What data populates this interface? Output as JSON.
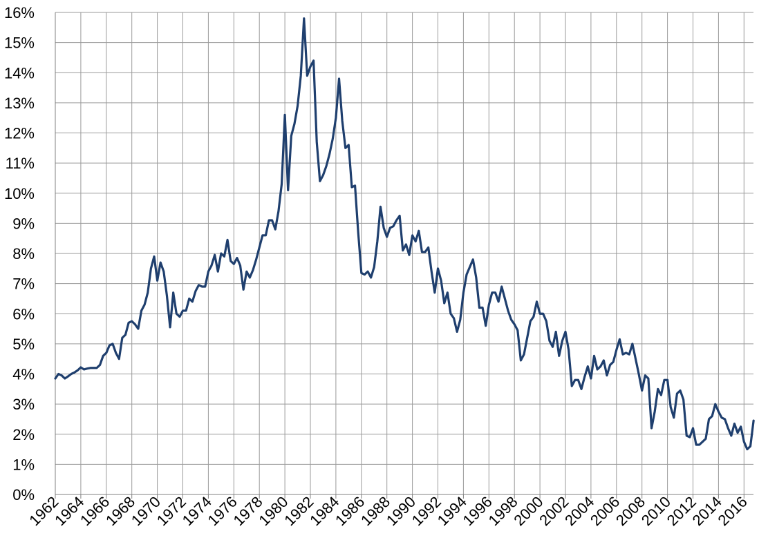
{
  "chart_data": {
    "type": "line",
    "title": "",
    "xlabel": "",
    "ylabel": "",
    "xlim": [
      1962,
      2016.75
    ],
    "ylim": [
      0,
      16
    ],
    "grid": true,
    "legend": "none",
    "y_ticks": [
      "0%",
      "1%",
      "2%",
      "3%",
      "4%",
      "5%",
      "6%",
      "7%",
      "8%",
      "9%",
      "10%",
      "11%",
      "12%",
      "13%",
      "14%",
      "15%",
      "16%"
    ],
    "x_ticks": [
      "1962",
      "1964",
      "1966",
      "1968",
      "1970",
      "1972",
      "1974",
      "1976",
      "1978",
      "1980",
      "1982",
      "1984",
      "1986",
      "1988",
      "1990",
      "1992",
      "1994",
      "1996",
      "1998",
      "2000",
      "2002",
      "2004",
      "2006",
      "2008",
      "2010",
      "2012",
      "2014",
      "2016"
    ],
    "series_color": "#1f3f6e",
    "series": [
      {
        "name": "",
        "points": [
          [
            1962.0,
            3.85
          ],
          [
            1962.25,
            4.0
          ],
          [
            1962.5,
            3.95
          ],
          [
            1962.75,
            3.85
          ],
          [
            1963.0,
            3.92
          ],
          [
            1963.25,
            4.0
          ],
          [
            1963.5,
            4.05
          ],
          [
            1963.75,
            4.12
          ],
          [
            1964.0,
            4.22
          ],
          [
            1964.25,
            4.15
          ],
          [
            1964.5,
            4.18
          ],
          [
            1964.75,
            4.2
          ],
          [
            1965.0,
            4.2
          ],
          [
            1965.25,
            4.2
          ],
          [
            1965.5,
            4.3
          ],
          [
            1965.75,
            4.6
          ],
          [
            1966.0,
            4.7
          ],
          [
            1966.25,
            4.95
          ],
          [
            1966.5,
            5.0
          ],
          [
            1966.75,
            4.7
          ],
          [
            1967.0,
            4.5
          ],
          [
            1967.25,
            5.2
          ],
          [
            1967.5,
            5.3
          ],
          [
            1967.75,
            5.7
          ],
          [
            1968.0,
            5.75
          ],
          [
            1968.25,
            5.65
          ],
          [
            1968.5,
            5.5
          ],
          [
            1968.75,
            6.1
          ],
          [
            1969.0,
            6.3
          ],
          [
            1969.25,
            6.7
          ],
          [
            1969.5,
            7.5
          ],
          [
            1969.75,
            7.9
          ],
          [
            1970.0,
            7.1
          ],
          [
            1970.25,
            7.7
          ],
          [
            1970.5,
            7.4
          ],
          [
            1970.75,
            6.6
          ],
          [
            1971.0,
            5.55
          ],
          [
            1971.25,
            6.7
          ],
          [
            1971.5,
            6.0
          ],
          [
            1971.75,
            5.9
          ],
          [
            1972.0,
            6.1
          ],
          [
            1972.25,
            6.1
          ],
          [
            1972.5,
            6.5
          ],
          [
            1972.75,
            6.4
          ],
          [
            1973.0,
            6.75
          ],
          [
            1973.25,
            6.95
          ],
          [
            1973.5,
            6.9
          ],
          [
            1973.75,
            6.9
          ],
          [
            1974.0,
            7.4
          ],
          [
            1974.25,
            7.6
          ],
          [
            1974.5,
            7.95
          ],
          [
            1974.75,
            7.4
          ],
          [
            1975.0,
            8.0
          ],
          [
            1975.25,
            7.9
          ],
          [
            1975.5,
            8.45
          ],
          [
            1975.75,
            7.75
          ],
          [
            1976.0,
            7.65
          ],
          [
            1976.25,
            7.85
          ],
          [
            1976.5,
            7.6
          ],
          [
            1976.75,
            6.8
          ],
          [
            1977.0,
            7.4
          ],
          [
            1977.25,
            7.2
          ],
          [
            1977.5,
            7.45
          ],
          [
            1977.75,
            7.8
          ],
          [
            1978.0,
            8.2
          ],
          [
            1978.25,
            8.6
          ],
          [
            1978.5,
            8.6
          ],
          [
            1978.75,
            9.1
          ],
          [
            1979.0,
            9.1
          ],
          [
            1979.25,
            8.8
          ],
          [
            1979.5,
            9.4
          ],
          [
            1979.75,
            10.3
          ],
          [
            1980.0,
            12.6
          ],
          [
            1980.25,
            10.1
          ],
          [
            1980.5,
            11.9
          ],
          [
            1980.75,
            12.3
          ],
          [
            1981.0,
            12.9
          ],
          [
            1981.25,
            13.9
          ],
          [
            1981.5,
            15.8
          ],
          [
            1981.75,
            13.9
          ],
          [
            1982.0,
            14.2
          ],
          [
            1982.25,
            14.4
          ],
          [
            1982.5,
            11.7
          ],
          [
            1982.75,
            10.4
          ],
          [
            1983.0,
            10.6
          ],
          [
            1983.25,
            10.9
          ],
          [
            1983.5,
            11.3
          ],
          [
            1983.75,
            11.8
          ],
          [
            1984.0,
            12.5
          ],
          [
            1984.25,
            13.8
          ],
          [
            1984.5,
            12.4
          ],
          [
            1984.75,
            11.5
          ],
          [
            1985.0,
            11.6
          ],
          [
            1985.25,
            10.2
          ],
          [
            1985.5,
            10.25
          ],
          [
            1985.75,
            8.7
          ],
          [
            1986.0,
            7.35
          ],
          [
            1986.25,
            7.3
          ],
          [
            1986.5,
            7.4
          ],
          [
            1986.75,
            7.2
          ],
          [
            1987.0,
            7.55
          ],
          [
            1987.25,
            8.4
          ],
          [
            1987.5,
            9.55
          ],
          [
            1987.75,
            8.85
          ],
          [
            1988.0,
            8.55
          ],
          [
            1988.25,
            8.85
          ],
          [
            1988.5,
            8.9
          ],
          [
            1988.75,
            9.1
          ],
          [
            1989.0,
            9.25
          ],
          [
            1989.25,
            8.1
          ],
          [
            1989.5,
            8.3
          ],
          [
            1989.75,
            7.95
          ],
          [
            1990.0,
            8.6
          ],
          [
            1990.25,
            8.4
          ],
          [
            1990.5,
            8.75
          ],
          [
            1990.75,
            8.05
          ],
          [
            1991.0,
            8.05
          ],
          [
            1991.25,
            8.2
          ],
          [
            1991.5,
            7.4
          ],
          [
            1991.75,
            6.7
          ],
          [
            1992.0,
            7.5
          ],
          [
            1992.25,
            7.1
          ],
          [
            1992.5,
            6.35
          ],
          [
            1992.75,
            6.7
          ],
          [
            1993.0,
            6.0
          ],
          [
            1993.25,
            5.85
          ],
          [
            1993.5,
            5.4
          ],
          [
            1993.75,
            5.8
          ],
          [
            1994.0,
            6.7
          ],
          [
            1994.25,
            7.3
          ],
          [
            1994.5,
            7.55
          ],
          [
            1994.75,
            7.8
          ],
          [
            1995.0,
            7.2
          ],
          [
            1995.25,
            6.2
          ],
          [
            1995.5,
            6.2
          ],
          [
            1995.75,
            5.6
          ],
          [
            1996.0,
            6.3
          ],
          [
            1996.25,
            6.7
          ],
          [
            1996.5,
            6.7
          ],
          [
            1996.75,
            6.4
          ],
          [
            1997.0,
            6.9
          ],
          [
            1997.25,
            6.5
          ],
          [
            1997.5,
            6.1
          ],
          [
            1997.75,
            5.8
          ],
          [
            1998.0,
            5.65
          ],
          [
            1998.25,
            5.45
          ],
          [
            1998.5,
            4.45
          ],
          [
            1998.75,
            4.65
          ],
          [
            1999.0,
            5.2
          ],
          [
            1999.25,
            5.75
          ],
          [
            1999.5,
            5.9
          ],
          [
            1999.75,
            6.4
          ],
          [
            2000.0,
            6.0
          ],
          [
            2000.25,
            6.0
          ],
          [
            2000.5,
            5.75
          ],
          [
            2000.75,
            5.1
          ],
          [
            2001.0,
            4.9
          ],
          [
            2001.25,
            5.4
          ],
          [
            2001.5,
            4.6
          ],
          [
            2001.75,
            5.1
          ],
          [
            2002.0,
            5.4
          ],
          [
            2002.25,
            4.8
          ],
          [
            2002.5,
            3.6
          ],
          [
            2002.75,
            3.8
          ],
          [
            2003.0,
            3.8
          ],
          [
            2003.25,
            3.5
          ],
          [
            2003.5,
            3.9
          ],
          [
            2003.75,
            4.25
          ],
          [
            2004.0,
            3.85
          ],
          [
            2004.25,
            4.6
          ],
          [
            2004.5,
            4.15
          ],
          [
            2004.75,
            4.25
          ],
          [
            2005.0,
            4.45
          ],
          [
            2005.25,
            3.95
          ],
          [
            2005.5,
            4.3
          ],
          [
            2005.75,
            4.4
          ],
          [
            2006.0,
            4.8
          ],
          [
            2006.25,
            5.15
          ],
          [
            2006.5,
            4.65
          ],
          [
            2006.75,
            4.7
          ],
          [
            2007.0,
            4.65
          ],
          [
            2007.25,
            5.0
          ],
          [
            2007.5,
            4.5
          ],
          [
            2007.75,
            4.0
          ],
          [
            2008.0,
            3.45
          ],
          [
            2008.25,
            3.95
          ],
          [
            2008.5,
            3.85
          ],
          [
            2008.75,
            2.2
          ],
          [
            2009.0,
            2.75
          ],
          [
            2009.25,
            3.5
          ],
          [
            2009.5,
            3.3
          ],
          [
            2009.75,
            3.8
          ],
          [
            2010.0,
            3.8
          ],
          [
            2010.25,
            2.9
          ],
          [
            2010.5,
            2.55
          ],
          [
            2010.75,
            3.35
          ],
          [
            2011.0,
            3.45
          ],
          [
            2011.25,
            3.15
          ],
          [
            2011.5,
            1.95
          ],
          [
            2011.75,
            1.9
          ],
          [
            2012.0,
            2.2
          ],
          [
            2012.25,
            1.65
          ],
          [
            2012.5,
            1.65
          ],
          [
            2012.75,
            1.75
          ],
          [
            2013.0,
            1.85
          ],
          [
            2013.25,
            2.5
          ],
          [
            2013.5,
            2.6
          ],
          [
            2013.75,
            3.0
          ],
          [
            2014.0,
            2.75
          ],
          [
            2014.25,
            2.55
          ],
          [
            2014.5,
            2.5
          ],
          [
            2014.75,
            2.2
          ],
          [
            2015.0,
            1.95
          ],
          [
            2015.25,
            2.35
          ],
          [
            2015.5,
            2.05
          ],
          [
            2015.75,
            2.25
          ],
          [
            2016.0,
            1.75
          ],
          [
            2016.25,
            1.5
          ],
          [
            2016.5,
            1.6
          ],
          [
            2016.75,
            2.45
          ]
        ]
      }
    ]
  }
}
